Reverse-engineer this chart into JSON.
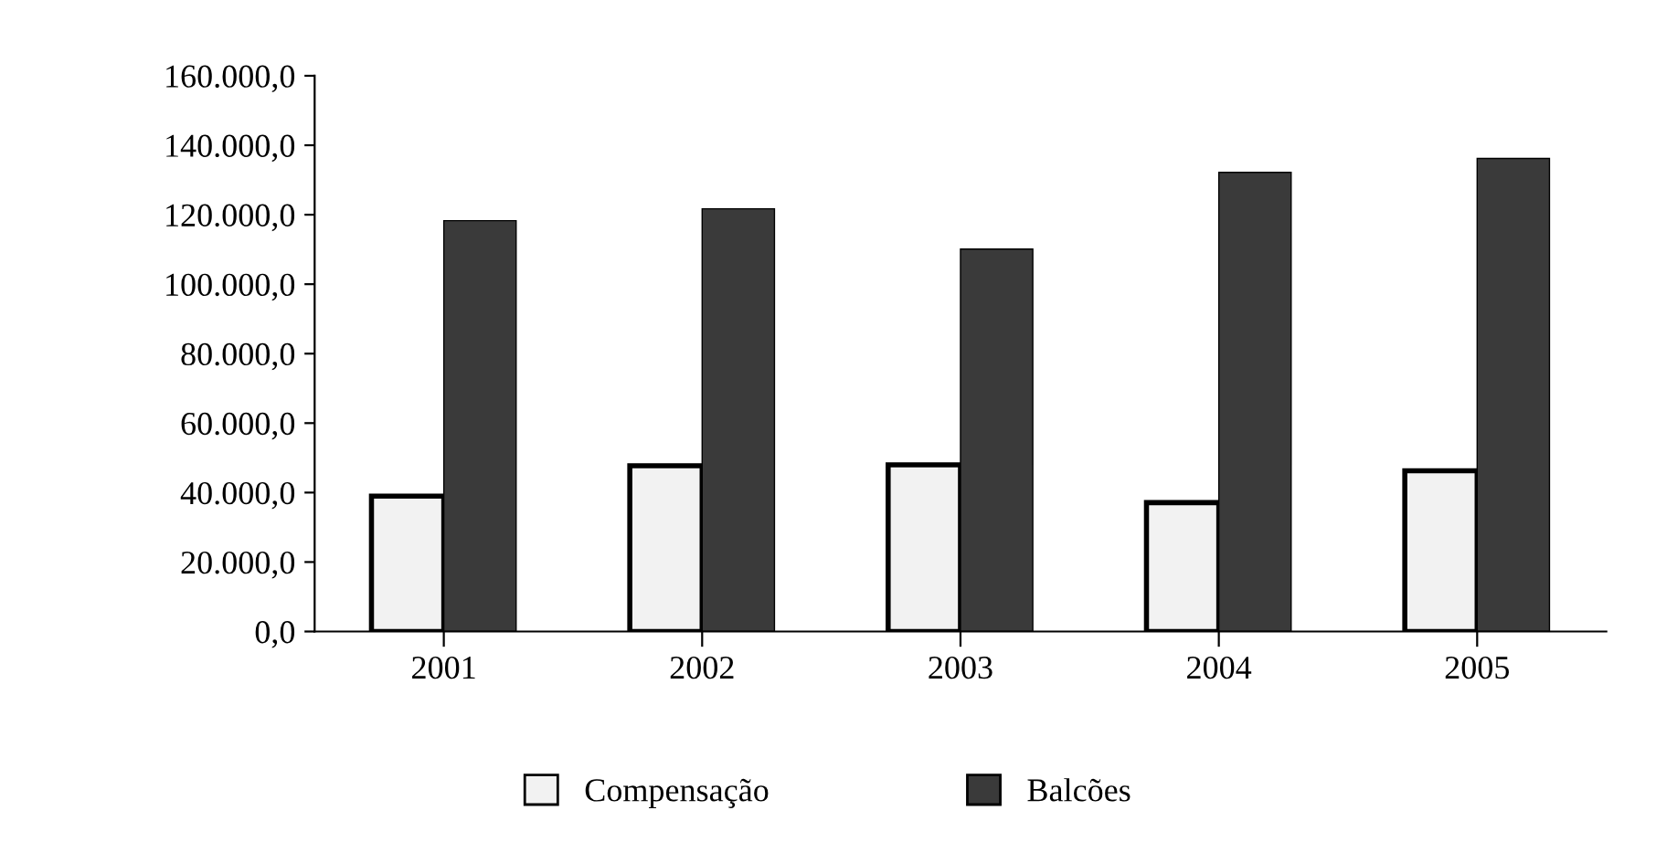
{
  "chart_data": {
    "type": "bar",
    "categories": [
      "2001",
      "2002",
      "2003",
      "2004",
      "2005"
    ],
    "series": [
      {
        "name": "Compensação",
        "color": "#f2f2f2",
        "values": [
          39000,
          47700,
          48000,
          37100,
          46300
        ]
      },
      {
        "name": "Balcões",
        "color": "#3a3a3a",
        "values": [
          118300,
          121700,
          110100,
          132200,
          136200
        ]
      }
    ],
    "ylim": [
      0,
      160000
    ],
    "yticks": [
      {
        "value": 0,
        "label": "0,0"
      },
      {
        "value": 20000,
        "label": "20.000,0"
      },
      {
        "value": 40000,
        "label": "40.000,0"
      },
      {
        "value": 60000,
        "label": "60.000,0"
      },
      {
        "value": 80000,
        "label": "80.000,0"
      },
      {
        "value": 100000,
        "label": "100.000,0"
      },
      {
        "value": 120000,
        "label": "120.000,0"
      },
      {
        "value": 140000,
        "label": "140.000,0"
      },
      {
        "value": 160000,
        "label": "160.000,0"
      }
    ],
    "grid": false,
    "legend": "bottom"
  }
}
